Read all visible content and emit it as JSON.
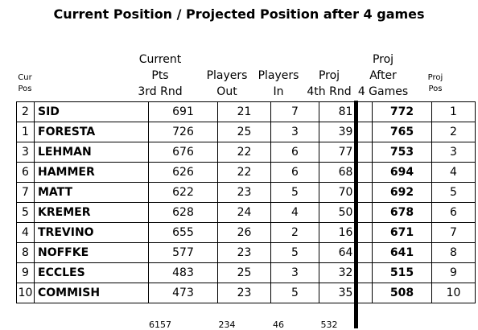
{
  "title": "Current Position / Projected Position after 4 games",
  "headers": {
    "cur_pos": [
      "Cur",
      "Pos"
    ],
    "current_pts": [
      "Current",
      "Pts",
      "3rd Rnd"
    ],
    "players_out": [
      "Players",
      "Out"
    ],
    "players_in": [
      "Players",
      "In"
    ],
    "proj_4th": [
      "Proj",
      "4th Rnd"
    ],
    "proj_after": [
      "Proj",
      "After",
      "4 Games"
    ],
    "proj_pos": [
      "Proj",
      "Pos"
    ]
  },
  "rows": [
    {
      "cur_pos": "2",
      "name": "SID",
      "current_pts": "691",
      "players_out": "21",
      "players_in": "7",
      "proj_4th": "81",
      "proj_after": "772",
      "proj_pos": "1"
    },
    {
      "cur_pos": "1",
      "name": "FORESTA",
      "current_pts": "726",
      "players_out": "25",
      "players_in": "3",
      "proj_4th": "39",
      "proj_after": "765",
      "proj_pos": "2"
    },
    {
      "cur_pos": "3",
      "name": "LEHMAN",
      "current_pts": "676",
      "players_out": "22",
      "players_in": "6",
      "proj_4th": "77",
      "proj_after": "753",
      "proj_pos": "3"
    },
    {
      "cur_pos": "6",
      "name": "HAMMER",
      "current_pts": "626",
      "players_out": "22",
      "players_in": "6",
      "proj_4th": "68",
      "proj_after": "694",
      "proj_pos": "4"
    },
    {
      "cur_pos": "7",
      "name": "MATT",
      "current_pts": "622",
      "players_out": "23",
      "players_in": "5",
      "proj_4th": "70",
      "proj_after": "692",
      "proj_pos": "5"
    },
    {
      "cur_pos": "5",
      "name": "KREMER",
      "current_pts": "628",
      "players_out": "24",
      "players_in": "4",
      "proj_4th": "50",
      "proj_after": "678",
      "proj_pos": "6"
    },
    {
      "cur_pos": "4",
      "name": "TREVINO",
      "current_pts": "655",
      "players_out": "26",
      "players_in": "2",
      "proj_4th": "16",
      "proj_after": "671",
      "proj_pos": "7"
    },
    {
      "cur_pos": "8",
      "name": "NOFFKE",
      "current_pts": "577",
      "players_out": "23",
      "players_in": "5",
      "proj_4th": "64",
      "proj_after": "641",
      "proj_pos": "8"
    },
    {
      "cur_pos": "9",
      "name": "ECCLES",
      "current_pts": "483",
      "players_out": "25",
      "players_in": "3",
      "proj_4th": "32",
      "proj_after": "515",
      "proj_pos": "9"
    },
    {
      "cur_pos": "10",
      "name": "COMMISH",
      "current_pts": "473",
      "players_out": "23",
      "players_in": "5",
      "proj_4th": "35",
      "proj_after": "508",
      "proj_pos": "10"
    }
  ],
  "totals": {
    "current_pts": "6157",
    "players_out": "234",
    "players_in": "46",
    "proj_4th": "532"
  }
}
